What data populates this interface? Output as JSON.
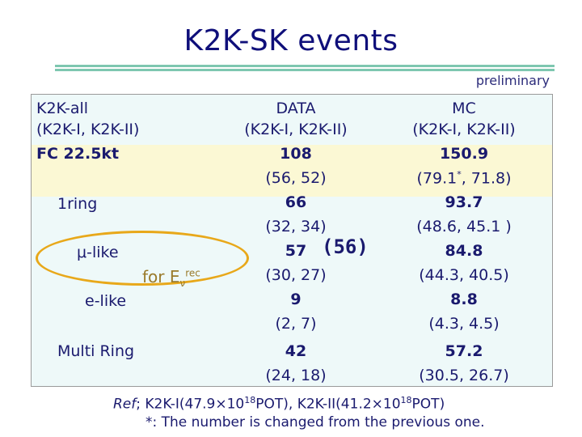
{
  "title": "K2K-SK events",
  "preliminary": "preliminary",
  "left": {
    "h1": "K2K-all",
    "h2": "(K2K-I, K2K-II)",
    "h3": "FC 22.5kt",
    "ring1": "1ring",
    "mu": "μ-like",
    "for_label": "for E",
    "for_sub": "ν",
    "for_sup": "rec",
    "elike": "e-like",
    "multi": "Multi Ring"
  },
  "data": {
    "h1": "DATA",
    "h2": "(K2K-I, K2K-II)",
    "fc": "108",
    "fc_sub": "(56, 52)",
    "ring1": "66",
    "ring1_sub": "(32, 34)",
    "mu": "57",
    "mu_paren": "(56)",
    "mu_sub": "(30, 27)",
    "e": "9",
    "e_sub": "(2, 7)",
    "multi": "42",
    "multi_sub": "(24, 18)"
  },
  "mc": {
    "h1": "MC",
    "h2": "(K2K-I, K2K-II)",
    "fc": "150.9",
    "fc_sub_a": "(79.1",
    "fc_sub_star": "*",
    "fc_sub_b": ", 71.8)",
    "ring1": "93.7",
    "ring1_sub": "(48.6, 45.1 )",
    "mu": "84.8",
    "mu_sub": "(44.3, 40.5)",
    "e": "8.8",
    "e_sub": "(4.3, 4.5)",
    "multi": "57.2",
    "multi_sub": "(30.5, 26.7)"
  },
  "footnote": {
    "ref_italic": "Ref",
    "ref_a": "; K2K-I(47.9×10",
    "exp1": "18",
    "ref_b": "POT), K2K-II(41.2×10",
    "exp2": "18",
    "ref_c": "POT)",
    "star_note": "*: The number is changed from the previous one."
  }
}
